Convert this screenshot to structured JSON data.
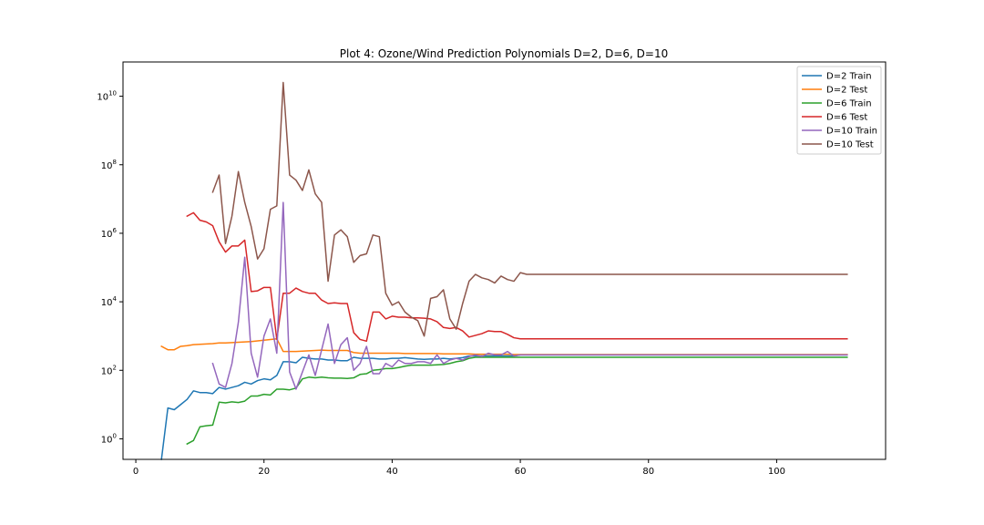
{
  "chart_data": {
    "type": "line",
    "title": "Plot 4: Ozone/Wind Prediction Polynomials D=2, D=6, D=10",
    "xlabel": "",
    "ylabel": "",
    "yscale": "log",
    "xlim": [
      -2,
      117
    ],
    "ylim_log10": [
      -0.6,
      11.0
    ],
    "xticks": [
      0,
      20,
      40,
      60,
      80,
      100
    ],
    "yticks": [
      {
        "exp": 0,
        "base": "10",
        "sup": "0"
      },
      {
        "exp": 2,
        "base": "10",
        "sup": "2"
      },
      {
        "exp": 4,
        "base": "10",
        "sup": "4"
      },
      {
        "exp": 6,
        "base": "10",
        "sup": "6"
      },
      {
        "exp": 8,
        "base": "10",
        "sup": "8"
      },
      {
        "exp": 10,
        "base": "10",
        "sup": "10"
      }
    ],
    "legend_position": "top-right",
    "grid": false,
    "series": [
      {
        "name": "D=2 Train",
        "color": "#1f77b4",
        "x": [
          4,
          5,
          6,
          7,
          8,
          9,
          10,
          11,
          12,
          13,
          14,
          15,
          16,
          17,
          18,
          19,
          20,
          21,
          22,
          23,
          24,
          25,
          26,
          27,
          28,
          29,
          30,
          31,
          32,
          33,
          34,
          35,
          36,
          37,
          38,
          39,
          40,
          41,
          42,
          43,
          44,
          45,
          46,
          47,
          48,
          49,
          50,
          51,
          52,
          53,
          54,
          55,
          56,
          57,
          58,
          59,
          60,
          61,
          111
        ],
        "log10y": [
          -0.6,
          0.9,
          0.85,
          1.0,
          1.15,
          1.4,
          1.35,
          1.35,
          1.32,
          1.5,
          1.45,
          1.5,
          1.55,
          1.65,
          1.6,
          1.7,
          1.75,
          1.72,
          1.85,
          2.25,
          2.25,
          2.22,
          2.38,
          2.35,
          2.33,
          2.33,
          2.3,
          2.3,
          2.28,
          2.28,
          2.38,
          2.35,
          2.35,
          2.35,
          2.33,
          2.33,
          2.35,
          2.35,
          2.37,
          2.35,
          2.33,
          2.32,
          2.33,
          2.33,
          2.35,
          2.33,
          2.35,
          2.37,
          2.42,
          2.42,
          2.42,
          2.42,
          2.42,
          2.42,
          2.42,
          2.42,
          2.45,
          2.45,
          2.45
        ]
      },
      {
        "name": "D=2 Test",
        "color": "#ff7f0e",
        "x": [
          4,
          5,
          6,
          7,
          8,
          9,
          10,
          11,
          12,
          13,
          14,
          15,
          16,
          17,
          18,
          19,
          20,
          21,
          22,
          23,
          24,
          25,
          26,
          27,
          28,
          29,
          30,
          31,
          32,
          33,
          34,
          35,
          36,
          37,
          38,
          39,
          40,
          41,
          42,
          43,
          44,
          45,
          46,
          47,
          48,
          49,
          50,
          51,
          52,
          53,
          54,
          55,
          56,
          57,
          58,
          59,
          60,
          61,
          111
        ],
        "log10y": [
          2.7,
          2.6,
          2.6,
          2.7,
          2.72,
          2.75,
          2.76,
          2.77,
          2.78,
          2.8,
          2.8,
          2.81,
          2.82,
          2.83,
          2.84,
          2.86,
          2.88,
          2.9,
          2.92,
          2.55,
          2.55,
          2.55,
          2.56,
          2.57,
          2.58,
          2.59,
          2.58,
          2.58,
          2.58,
          2.58,
          2.52,
          2.5,
          2.5,
          2.5,
          2.5,
          2.5,
          2.5,
          2.5,
          2.49,
          2.49,
          2.49,
          2.49,
          2.49,
          2.49,
          2.48,
          2.48,
          2.48,
          2.48,
          2.48,
          2.47,
          2.47,
          2.47,
          2.47,
          2.47,
          2.47,
          2.46,
          2.46,
          2.46,
          2.46
        ]
      },
      {
        "name": "D=6 Train",
        "color": "#2ca02c",
        "x": [
          8,
          9,
          10,
          11,
          12,
          13,
          14,
          15,
          16,
          17,
          18,
          19,
          20,
          21,
          22,
          23,
          24,
          25,
          26,
          27,
          28,
          29,
          30,
          31,
          32,
          33,
          34,
          35,
          36,
          37,
          38,
          39,
          40,
          41,
          42,
          43,
          44,
          45,
          46,
          47,
          48,
          49,
          50,
          51,
          52,
          53,
          54,
          55,
          56,
          57,
          58,
          59,
          60,
          61,
          111
        ],
        "log10y": [
          -0.15,
          -0.05,
          0.35,
          0.38,
          0.4,
          1.07,
          1.05,
          1.08,
          1.06,
          1.1,
          1.25,
          1.25,
          1.3,
          1.28,
          1.45,
          1.45,
          1.43,
          1.48,
          1.75,
          1.8,
          1.78,
          1.8,
          1.78,
          1.77,
          1.77,
          1.76,
          1.78,
          1.88,
          1.9,
          2.0,
          2.02,
          2.05,
          2.05,
          2.08,
          2.12,
          2.15,
          2.15,
          2.15,
          2.15,
          2.16,
          2.17,
          2.2,
          2.25,
          2.28,
          2.35,
          2.38,
          2.38,
          2.38,
          2.38,
          2.38,
          2.38,
          2.38,
          2.38,
          2.38,
          2.38
        ]
      },
      {
        "name": "D=6 Test",
        "color": "#d62728",
        "x": [
          8,
          9,
          10,
          11,
          12,
          13,
          14,
          15,
          16,
          17,
          18,
          19,
          20,
          21,
          22,
          23,
          24,
          25,
          26,
          27,
          28,
          29,
          30,
          31,
          32,
          33,
          34,
          35,
          36,
          37,
          38,
          39,
          40,
          41,
          42,
          43,
          44,
          45,
          46,
          47,
          48,
          49,
          50,
          51,
          52,
          53,
          54,
          55,
          56,
          57,
          58,
          59,
          60,
          61,
          111
        ],
        "log10y": [
          6.5,
          6.6,
          6.38,
          6.33,
          6.22,
          5.75,
          5.45,
          5.63,
          5.63,
          5.8,
          4.3,
          4.32,
          4.42,
          4.42,
          2.9,
          4.25,
          4.25,
          4.4,
          4.3,
          4.25,
          4.25,
          4.05,
          3.95,
          3.97,
          3.95,
          3.95,
          3.1,
          2.9,
          2.85,
          3.7,
          3.7,
          3.5,
          3.58,
          3.55,
          3.55,
          3.53,
          3.53,
          3.52,
          3.5,
          3.42,
          3.25,
          3.22,
          3.25,
          3.15,
          2.97,
          3.02,
          3.07,
          3.15,
          3.13,
          3.13,
          3.05,
          2.95,
          2.92,
          2.92,
          2.92
        ]
      },
      {
        "name": "D=10 Train",
        "color": "#9467bd",
        "x": [
          12,
          13,
          14,
          15,
          16,
          17,
          18,
          19,
          20,
          21,
          22,
          23,
          24,
          25,
          26,
          27,
          28,
          29,
          30,
          31,
          32,
          33,
          34,
          35,
          36,
          37,
          38,
          39,
          40,
          41,
          42,
          43,
          44,
          45,
          46,
          47,
          48,
          49,
          50,
          51,
          52,
          53,
          54,
          55,
          56,
          57,
          58,
          59,
          60,
          61,
          111
        ],
        "log10y": [
          2.2,
          1.6,
          1.5,
          2.2,
          3.4,
          5.3,
          2.5,
          1.8,
          3.0,
          3.5,
          2.5,
          6.9,
          1.95,
          1.45,
          1.95,
          2.45,
          1.85,
          2.6,
          3.35,
          2.2,
          2.75,
          2.95,
          2.0,
          2.2,
          2.7,
          1.9,
          1.9,
          2.2,
          2.1,
          2.3,
          2.2,
          2.2,
          2.25,
          2.25,
          2.2,
          2.45,
          2.2,
          2.3,
          2.35,
          2.3,
          2.4,
          2.45,
          2.4,
          2.5,
          2.45,
          2.45,
          2.55,
          2.42,
          2.45,
          2.45,
          2.45
        ]
      },
      {
        "name": "D=10 Test",
        "color": "#8c564b",
        "x": [
          12,
          13,
          14,
          15,
          16,
          17,
          18,
          19,
          20,
          21,
          22,
          23,
          24,
          25,
          26,
          27,
          28,
          29,
          30,
          31,
          32,
          33,
          34,
          35,
          36,
          37,
          38,
          39,
          40,
          41,
          42,
          43,
          44,
          45,
          46,
          47,
          48,
          49,
          50,
          51,
          52,
          53,
          54,
          55,
          56,
          57,
          58,
          59,
          60,
          61,
          111
        ],
        "log10y": [
          7.2,
          7.7,
          5.7,
          6.5,
          7.8,
          6.9,
          6.2,
          5.25,
          5.55,
          6.7,
          6.8,
          10.4,
          7.7,
          7.55,
          7.25,
          7.85,
          7.15,
          6.9,
          4.6,
          5.95,
          6.1,
          5.9,
          5.15,
          5.35,
          5.4,
          5.95,
          5.9,
          4.25,
          3.9,
          4.0,
          3.7,
          3.55,
          3.45,
          3.0,
          4.1,
          4.15,
          4.35,
          3.5,
          3.2,
          3.95,
          4.6,
          4.8,
          4.7,
          4.65,
          4.55,
          4.75,
          4.65,
          4.6,
          4.85,
          4.8,
          4.8
        ]
      }
    ]
  }
}
